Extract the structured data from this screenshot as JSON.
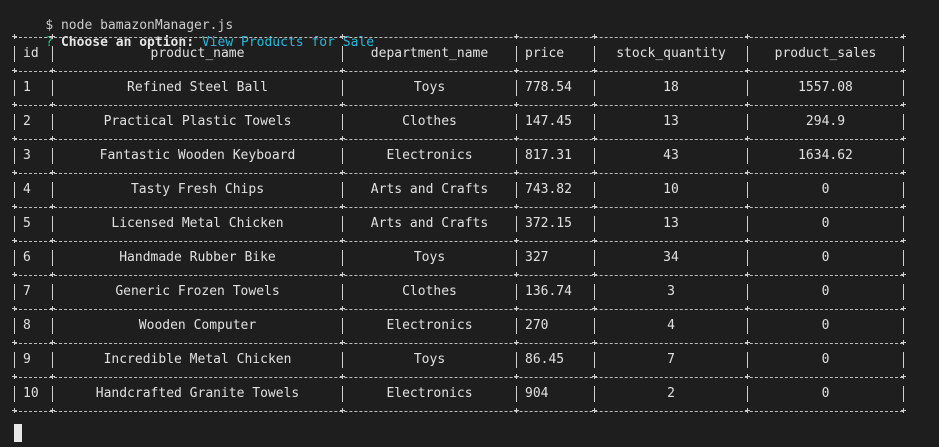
{
  "terminal": {
    "command_prompt": "$",
    "command": "node bamazonManager.js",
    "question_mark": "?",
    "question": "Choose an option:",
    "answer": "View Products for Sale"
  },
  "table": {
    "headers": [
      "id",
      "product_name",
      "department_name",
      "price",
      "stock_quantity",
      "product_sales"
    ],
    "rows": [
      [
        "1",
        "Refined Steel Ball",
        "Toys",
        "778.54",
        "18",
        "1557.08"
      ],
      [
        "2",
        "Practical Plastic Towels",
        "Clothes",
        "147.45",
        "13",
        "294.9"
      ],
      [
        "3",
        "Fantastic Wooden Keyboard",
        "Electronics",
        "817.31",
        "43",
        "1634.62"
      ],
      [
        "4",
        "Tasty Fresh Chips",
        "Arts and Crafts",
        "743.82",
        "10",
        "0"
      ],
      [
        "5",
        "Licensed Metal Chicken",
        "Arts and Crafts",
        "372.15",
        "13",
        "0"
      ],
      [
        "6",
        "Handmade Rubber Bike",
        "Toys",
        "327",
        "34",
        "0"
      ],
      [
        "7",
        "Generic Frozen Towels",
        "Clothes",
        "136.74",
        "3",
        "0"
      ],
      [
        "8",
        "Wooden Computer",
        "Electronics",
        "270",
        "4",
        "0"
      ],
      [
        "9",
        "Incredible Metal Chicken",
        "Toys",
        "86.45",
        "7",
        "0"
      ],
      [
        "10",
        "Handcrafted Granite Towels",
        "Electronics",
        "904",
        "2",
        "0"
      ]
    ]
  },
  "colors": {
    "background": "#1e1e1e",
    "text": "#cccccc",
    "question_mark": "#23d18b",
    "answer": "#29b8db",
    "border": "#d0d0d0"
  }
}
